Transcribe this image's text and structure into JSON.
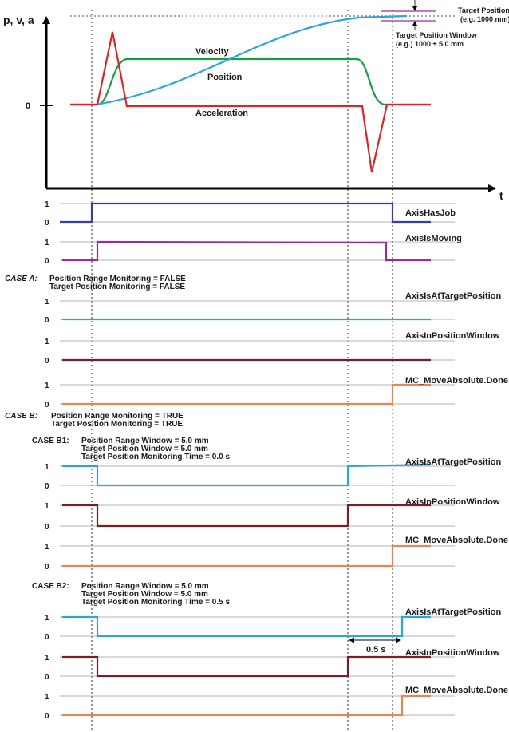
{
  "colors": {
    "position": "#2aa6dc",
    "velocity": "#1f9a48",
    "acceleration": "#d82626",
    "has_job": "#3a3f9a",
    "is_moving": "#a0289a",
    "at_target": "#2aa6dc",
    "in_window": "#7a1f2a",
    "done": "#e0885a",
    "grid": "#9a9a9a",
    "axis": "#000000"
  },
  "motion_chart": {
    "y_axis_title": "p, v, a",
    "x_axis_title": "t",
    "zero_label": "0",
    "velocity_label": "Velocity",
    "position_label": "Position",
    "acceleration_label": "Acceleration",
    "target_position_line1": "Target Position",
    "target_position_line2": "(e.g. 1000 mm)",
    "target_window_line1": "Target Position Window",
    "target_window_line2": "(e.g.) 1000 ± 5.0 mm"
  },
  "signals": {
    "axis_has_job": "AxisHasJob",
    "axis_is_moving": "AxisIsMoving",
    "at_target": "AxisIsAtTargetPosition",
    "in_window": "AxisInPositionWindow",
    "done": "MC_MoveAbsolute.Done"
  },
  "levels": {
    "one": "1",
    "zero": "0"
  },
  "case_a": {
    "title": "CASE A:",
    "line1": "Position Range Monitoring = FALSE",
    "line2": "Target Position Monitoring = FALSE"
  },
  "case_b": {
    "title": "CASE B:",
    "line1": "Position Range Monitoring = TRUE",
    "line2": "Target Position Monitoring = TRUE"
  },
  "case_b1": {
    "title": "CASE B1:",
    "line1": "Position Range Window = 5.0 mm",
    "line2": "Target Position Window = 5.0 mm",
    "line3": "Target Position Monitoring Time = 0.0 s"
  },
  "case_b2": {
    "title": "CASE B2:",
    "line1": "Position Range Window = 5.0 mm",
    "line2": "Target Position Window = 5.0 mm",
    "line3": "Target Position Monitoring Time = 0.5 s"
  },
  "delay_label": "0.5 s"
}
